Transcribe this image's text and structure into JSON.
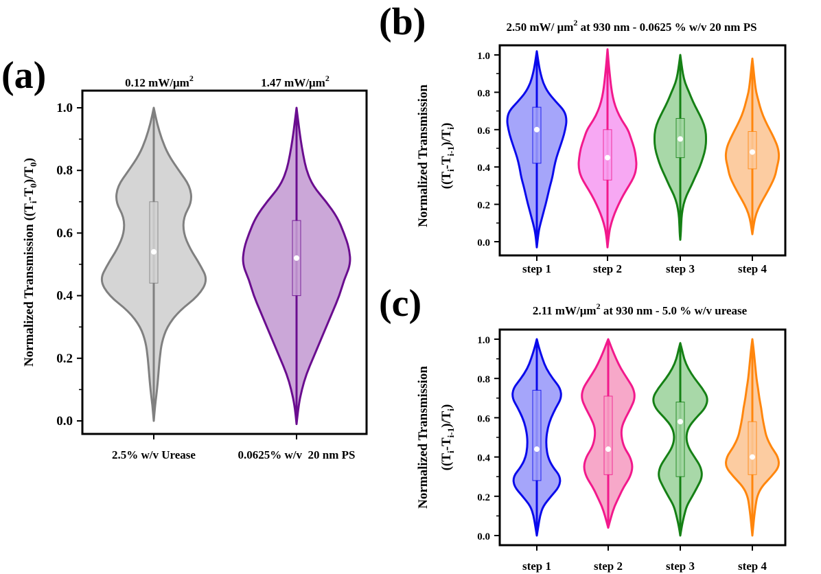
{
  "figure": {
    "panel_a": {
      "letter": "(a)"
    },
    "panel_b": {
      "letter": "(b)"
    },
    "panel_c": {
      "letter": "(c)"
    }
  },
  "chart_data": [
    {
      "id": "a",
      "type": "violin",
      "ylabel_main": "Normalized Transmission ((T",
      "ylabel_sub1": "i",
      "ylabel_mid": "-T",
      "ylabel_sub2": "0",
      "ylabel_end": ")/T",
      "ylabel_sub3": "0",
      "ylabel_close": ")",
      "ylim": [
        0,
        1
      ],
      "yticks": [
        "0.0",
        "0.2",
        "0.4",
        "0.6",
        "0.8",
        "1.0"
      ],
      "grid": false,
      "categories": [
        "2.5% w/v Urease",
        "0.0625% w/v  20 nm PS"
      ],
      "top_labels": [
        {
          "text": "0.12 mW/μm",
          "sup": "2"
        },
        {
          "text": "1.47 mW/μm",
          "sup": "2"
        }
      ],
      "series": [
        {
          "color": "#808080",
          "fill": "#d3d3d3",
          "median": 0.54,
          "q1": 0.44,
          "q3": 0.7,
          "min": 0.0,
          "max": 1.0,
          "profile": [
            [
              0.0,
              0.0
            ],
            [
              0.05,
              0.02
            ],
            [
              0.1,
              0.05
            ],
            [
              0.15,
              0.07
            ],
            [
              0.2,
              0.09
            ],
            [
              0.25,
              0.12
            ],
            [
              0.3,
              0.2
            ],
            [
              0.35,
              0.38
            ],
            [
              0.4,
              0.68
            ],
            [
              0.45,
              0.82
            ],
            [
              0.5,
              0.7
            ],
            [
              0.55,
              0.55
            ],
            [
              0.6,
              0.45
            ],
            [
              0.65,
              0.45
            ],
            [
              0.7,
              0.58
            ],
            [
              0.75,
              0.55
            ],
            [
              0.8,
              0.38
            ],
            [
              0.85,
              0.22
            ],
            [
              0.9,
              0.12
            ],
            [
              0.95,
              0.05
            ],
            [
              1.0,
              0.0
            ]
          ]
        },
        {
          "color": "#6a0d8f",
          "fill": "#c8a2d6",
          "median": 0.52,
          "q1": 0.4,
          "q3": 0.64,
          "min": -0.01,
          "max": 1.0,
          "profile": [
            [
              -0.01,
              0.0
            ],
            [
              0.05,
              0.03
            ],
            [
              0.1,
              0.08
            ],
            [
              0.15,
              0.15
            ],
            [
              0.2,
              0.25
            ],
            [
              0.25,
              0.35
            ],
            [
              0.3,
              0.45
            ],
            [
              0.35,
              0.55
            ],
            [
              0.4,
              0.65
            ],
            [
              0.45,
              0.72
            ],
            [
              0.5,
              0.82
            ],
            [
              0.55,
              0.8
            ],
            [
              0.6,
              0.72
            ],
            [
              0.65,
              0.62
            ],
            [
              0.7,
              0.45
            ],
            [
              0.75,
              0.25
            ],
            [
              0.8,
              0.15
            ],
            [
              0.85,
              0.1
            ],
            [
              0.9,
              0.06
            ],
            [
              0.95,
              0.03
            ],
            [
              1.0,
              0.0
            ]
          ]
        }
      ]
    },
    {
      "id": "b",
      "type": "violin",
      "title": "2.50 mW/ μm",
      "title_sup": "2",
      "title_rest": " at 930 nm - 0.0625 % w/v 20 nm PS",
      "ylabel_line1": "Normalized Transmission",
      "ylabel_line2": "((T",
      "ylabel_sub1": "i",
      "ylabel_mid": "-T",
      "ylabel_sub2": "i-1",
      "ylabel_end": ")/T",
      "ylabel_sub3": "i",
      "ylabel_close": ")",
      "ylim": [
        0,
        1
      ],
      "yticks": [
        "0.0",
        "0.2",
        "0.4",
        "0.6",
        "0.8",
        "1.0"
      ],
      "grid": false,
      "categories": [
        "step 1",
        "step 2",
        "step 3",
        "step 4"
      ],
      "series": [
        {
          "color": "#0a0aeb",
          "fill": "#a0a0fa",
          "median": 0.6,
          "q1": 0.42,
          "q3": 0.72,
          "min": -0.03,
          "max": 1.02,
          "profile": [
            [
              -0.03,
              0.0
            ],
            [
              0.05,
              0.05
            ],
            [
              0.1,
              0.12
            ],
            [
              0.15,
              0.2
            ],
            [
              0.2,
              0.28
            ],
            [
              0.25,
              0.35
            ],
            [
              0.3,
              0.42
            ],
            [
              0.35,
              0.5
            ],
            [
              0.4,
              0.55
            ],
            [
              0.45,
              0.62
            ],
            [
              0.5,
              0.72
            ],
            [
              0.55,
              0.82
            ],
            [
              0.6,
              0.9
            ],
            [
              0.65,
              0.95
            ],
            [
              0.7,
              0.88
            ],
            [
              0.75,
              0.6
            ],
            [
              0.8,
              0.35
            ],
            [
              0.85,
              0.2
            ],
            [
              0.9,
              0.12
            ],
            [
              0.95,
              0.06
            ],
            [
              1.02,
              0.0
            ]
          ]
        },
        {
          "color": "#f2198c",
          "fill": "#f7a3f2",
          "median": 0.45,
          "q1": 0.33,
          "q3": 0.6,
          "min": -0.03,
          "max": 1.03,
          "profile": [
            [
              -0.03,
              0.0
            ],
            [
              0.05,
              0.05
            ],
            [
              0.1,
              0.12
            ],
            [
              0.15,
              0.22
            ],
            [
              0.2,
              0.35
            ],
            [
              0.25,
              0.5
            ],
            [
              0.3,
              0.68
            ],
            [
              0.35,
              0.85
            ],
            [
              0.4,
              0.92
            ],
            [
              0.45,
              0.9
            ],
            [
              0.5,
              0.85
            ],
            [
              0.55,
              0.75
            ],
            [
              0.6,
              0.65
            ],
            [
              0.65,
              0.45
            ],
            [
              0.7,
              0.3
            ],
            [
              0.75,
              0.2
            ],
            [
              0.8,
              0.14
            ],
            [
              0.85,
              0.1
            ],
            [
              0.9,
              0.07
            ],
            [
              0.95,
              0.04
            ],
            [
              1.03,
              0.0
            ]
          ]
        },
        {
          "color": "#158015",
          "fill": "#a3d6a3",
          "median": 0.55,
          "q1": 0.45,
          "q3": 0.66,
          "min": 0.01,
          "max": 1.0,
          "profile": [
            [
              0.01,
              0.0
            ],
            [
              0.05,
              0.02
            ],
            [
              0.1,
              0.03
            ],
            [
              0.15,
              0.05
            ],
            [
              0.2,
              0.1
            ],
            [
              0.25,
              0.2
            ],
            [
              0.3,
              0.35
            ],
            [
              0.35,
              0.48
            ],
            [
              0.4,
              0.62
            ],
            [
              0.45,
              0.72
            ],
            [
              0.5,
              0.8
            ],
            [
              0.55,
              0.82
            ],
            [
              0.6,
              0.8
            ],
            [
              0.65,
              0.7
            ],
            [
              0.7,
              0.55
            ],
            [
              0.75,
              0.4
            ],
            [
              0.8,
              0.28
            ],
            [
              0.85,
              0.15
            ],
            [
              0.9,
              0.08
            ],
            [
              0.95,
              0.04
            ],
            [
              1.0,
              0.0
            ]
          ]
        },
        {
          "color": "#ff860d",
          "fill": "#fcc99c",
          "median": 0.48,
          "q1": 0.39,
          "q3": 0.59,
          "min": 0.04,
          "max": 0.98,
          "profile": [
            [
              0.04,
              0.0
            ],
            [
              0.1,
              0.05
            ],
            [
              0.15,
              0.12
            ],
            [
              0.2,
              0.25
            ],
            [
              0.25,
              0.42
            ],
            [
              0.3,
              0.58
            ],
            [
              0.35,
              0.72
            ],
            [
              0.4,
              0.78
            ],
            [
              0.45,
              0.85
            ],
            [
              0.5,
              0.82
            ],
            [
              0.55,
              0.7
            ],
            [
              0.6,
              0.55
            ],
            [
              0.65,
              0.4
            ],
            [
              0.7,
              0.28
            ],
            [
              0.75,
              0.2
            ],
            [
              0.8,
              0.12
            ],
            [
              0.85,
              0.08
            ],
            [
              0.9,
              0.05
            ],
            [
              0.98,
              0.0
            ]
          ]
        }
      ]
    },
    {
      "id": "c",
      "type": "violin",
      "title": "2.11 mW/μm",
      "title_sup": "2",
      "title_rest": " at 930 nm - 5.0 % w/v urease",
      "ylabel_line1": "Normalized Transmission",
      "ylabel_line2": "((T",
      "ylabel_sub1": "i",
      "ylabel_mid": "-T",
      "ylabel_sub2": "i-1",
      "ylabel_end": ")/T",
      "ylabel_sub3": "i",
      "ylabel_close": ")",
      "ylim": [
        0,
        1
      ],
      "yticks": [
        "0.0",
        "0.2",
        "0.4",
        "0.6",
        "0.8",
        "1.0"
      ],
      "grid": false,
      "categories": [
        "step 1",
        "step 2",
        "step 3",
        "step 4"
      ],
      "series": [
        {
          "color": "#0a0aeb",
          "fill": "#a0a0fa",
          "median": 0.44,
          "q1": 0.28,
          "q3": 0.74,
          "min": 0.0,
          "max": 1.0,
          "profile": [
            [
              0.0,
              0.0
            ],
            [
              0.05,
              0.05
            ],
            [
              0.1,
              0.1
            ],
            [
              0.15,
              0.2
            ],
            [
              0.2,
              0.45
            ],
            [
              0.25,
              0.72
            ],
            [
              0.3,
              0.75
            ],
            [
              0.35,
              0.5
            ],
            [
              0.4,
              0.35
            ],
            [
              0.45,
              0.3
            ],
            [
              0.5,
              0.3
            ],
            [
              0.55,
              0.35
            ],
            [
              0.6,
              0.45
            ],
            [
              0.65,
              0.6
            ],
            [
              0.7,
              0.78
            ],
            [
              0.75,
              0.75
            ],
            [
              0.8,
              0.5
            ],
            [
              0.85,
              0.3
            ],
            [
              0.9,
              0.18
            ],
            [
              0.95,
              0.08
            ],
            [
              1.0,
              0.0
            ]
          ]
        },
        {
          "color": "#f2198c",
          "fill": "#f7a3c6",
          "median": 0.44,
          "q1": 0.31,
          "q3": 0.71,
          "min": 0.04,
          "max": 1.0,
          "profile": [
            [
              0.04,
              0.0
            ],
            [
              0.1,
              0.1
            ],
            [
              0.15,
              0.2
            ],
            [
              0.2,
              0.35
            ],
            [
              0.25,
              0.5
            ],
            [
              0.3,
              0.7
            ],
            [
              0.35,
              0.78
            ],
            [
              0.4,
              0.7
            ],
            [
              0.45,
              0.5
            ],
            [
              0.5,
              0.42
            ],
            [
              0.55,
              0.42
            ],
            [
              0.6,
              0.55
            ],
            [
              0.65,
              0.72
            ],
            [
              0.7,
              0.85
            ],
            [
              0.75,
              0.8
            ],
            [
              0.8,
              0.6
            ],
            [
              0.85,
              0.4
            ],
            [
              0.9,
              0.25
            ],
            [
              0.95,
              0.12
            ],
            [
              1.0,
              0.0
            ]
          ]
        },
        {
          "color": "#158015",
          "fill": "#a3d6a3",
          "median": 0.58,
          "q1": 0.3,
          "q3": 0.68,
          "min": 0.0,
          "max": 0.98,
          "profile": [
            [
              0.0,
              0.0
            ],
            [
              0.05,
              0.05
            ],
            [
              0.1,
              0.12
            ],
            [
              0.15,
              0.2
            ],
            [
              0.2,
              0.38
            ],
            [
              0.25,
              0.55
            ],
            [
              0.3,
              0.7
            ],
            [
              0.35,
              0.65
            ],
            [
              0.4,
              0.45
            ],
            [
              0.45,
              0.25
            ],
            [
              0.5,
              0.18
            ],
            [
              0.55,
              0.25
            ],
            [
              0.6,
              0.5
            ],
            [
              0.65,
              0.8
            ],
            [
              0.7,
              0.88
            ],
            [
              0.75,
              0.7
            ],
            [
              0.8,
              0.45
            ],
            [
              0.85,
              0.25
            ],
            [
              0.9,
              0.12
            ],
            [
              0.95,
              0.05
            ],
            [
              0.98,
              0.0
            ]
          ]
        },
        {
          "color": "#ff860d",
          "fill": "#fcc99c",
          "median": 0.4,
          "q1": 0.31,
          "q3": 0.58,
          "min": 0.0,
          "max": 1.0,
          "profile": [
            [
              0.0,
              0.0
            ],
            [
              0.05,
              0.03
            ],
            [
              0.1,
              0.06
            ],
            [
              0.15,
              0.1
            ],
            [
              0.2,
              0.15
            ],
            [
              0.25,
              0.3
            ],
            [
              0.3,
              0.6
            ],
            [
              0.35,
              0.85
            ],
            [
              0.4,
              0.82
            ],
            [
              0.45,
              0.6
            ],
            [
              0.5,
              0.45
            ],
            [
              0.55,
              0.38
            ],
            [
              0.6,
              0.32
            ],
            [
              0.65,
              0.28
            ],
            [
              0.7,
              0.22
            ],
            [
              0.75,
              0.18
            ],
            [
              0.8,
              0.13
            ],
            [
              0.85,
              0.1
            ],
            [
              0.9,
              0.07
            ],
            [
              0.95,
              0.04
            ],
            [
              1.0,
              0.0
            ]
          ]
        }
      ]
    }
  ]
}
